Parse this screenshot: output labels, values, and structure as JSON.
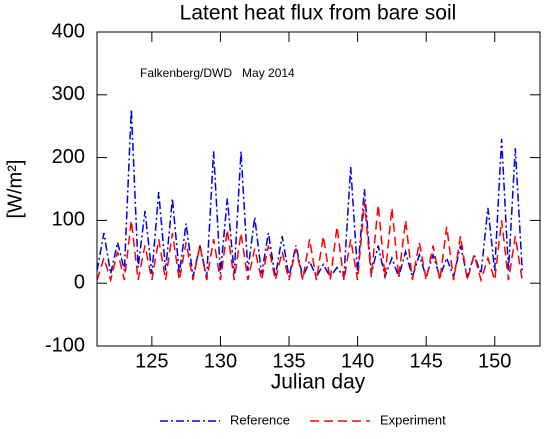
{
  "chart_data": {
    "type": "line",
    "title": "Latent heat flux from bare soil",
    "annotation": "Falkenberg/DWD   May 2014",
    "xlabel": "Julian day",
    "ylabel": "[W/m²]",
    "xlim": [
      121,
      153.3
    ],
    "ylim": [
      -100,
      400
    ],
    "xticks": [
      125,
      130,
      135,
      140,
      145,
      150
    ],
    "yticks": [
      -100,
      0,
      100,
      200,
      300,
      400
    ],
    "x": [
      121,
      121.5,
      122,
      122.5,
      123,
      123.5,
      124,
      124.5,
      125,
      125.5,
      126,
      126.5,
      127,
      127.5,
      128,
      128.5,
      129,
      129.5,
      130,
      130.5,
      131,
      131.5,
      132,
      132.5,
      133,
      133.5,
      134,
      134.5,
      135,
      135.5,
      136,
      136.5,
      137,
      137.5,
      138,
      138.5,
      139,
      139.5,
      140,
      140.5,
      141,
      141.5,
      142,
      142.5,
      143,
      143.5,
      144,
      144.5,
      145,
      145.5,
      146,
      146.5,
      147,
      147.5,
      148,
      148.5,
      149,
      149.5,
      150,
      150.5,
      151,
      151.5,
      152
    ],
    "series": [
      {
        "name": "Reference",
        "color": "#0000e0",
        "dash": "8 3 2 3",
        "values": [
          20,
          80,
          15,
          65,
          20,
          277,
          25,
          115,
          15,
          145,
          20,
          135,
          15,
          95,
          10,
          60,
          10,
          210,
          15,
          135,
          15,
          210,
          20,
          105,
          15,
          80,
          10,
          75,
          10,
          60,
          10,
          35,
          10,
          30,
          10,
          25,
          10,
          185,
          15,
          150,
          15,
          60,
          10,
          40,
          10,
          50,
          10,
          45,
          10,
          45,
          10,
          40,
          10,
          60,
          10,
          45,
          15,
          120,
          20,
          230,
          20,
          215,
          20
        ]
      },
      {
        "name": "Experiment",
        "color": "#ff0000",
        "dash": "9 5",
        "values": [
          5,
          40,
          5,
          50,
          5,
          100,
          5,
          60,
          5,
          70,
          5,
          80,
          5,
          65,
          5,
          60,
          5,
          70,
          5,
          85,
          5,
          80,
          5,
          55,
          5,
          60,
          5,
          50,
          5,
          55,
          5,
          70,
          5,
          75,
          5,
          90,
          5,
          70,
          5,
          130,
          10,
          125,
          10,
          120,
          10,
          100,
          5,
          65,
          5,
          60,
          5,
          90,
          5,
          75,
          5,
          45,
          5,
          40,
          5,
          100,
          5,
          75,
          5
        ]
      }
    ]
  }
}
